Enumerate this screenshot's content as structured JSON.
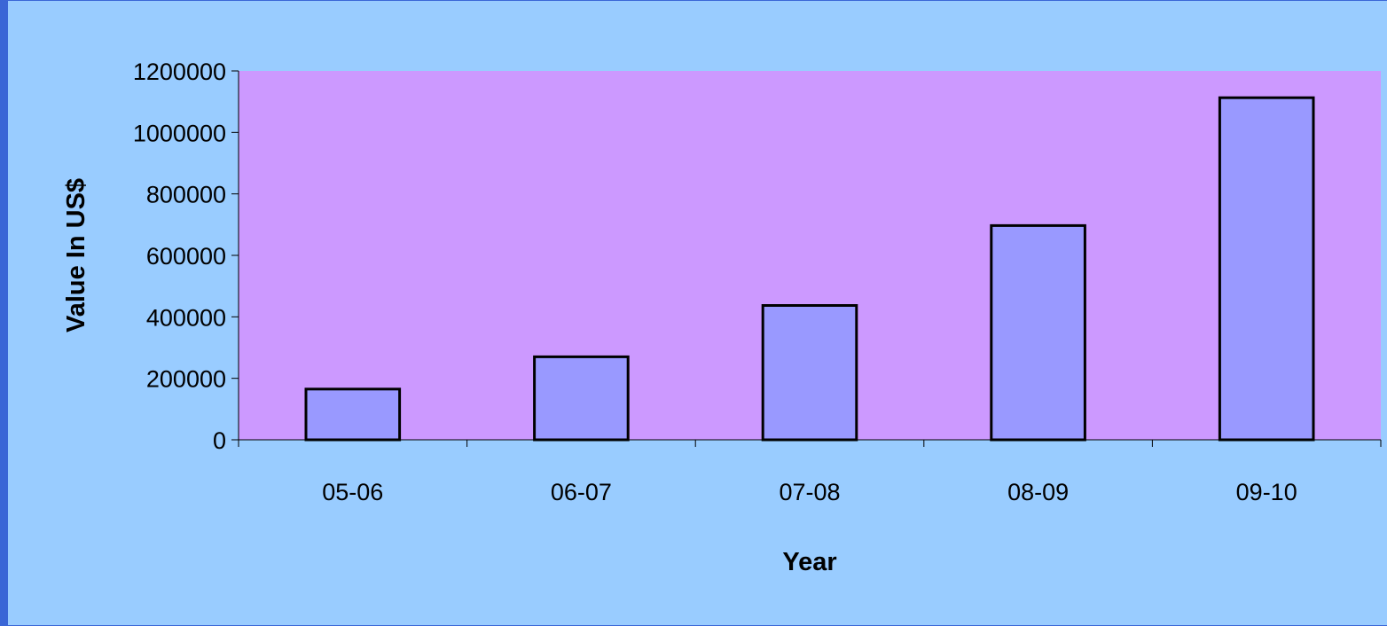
{
  "colors": {
    "background": "#99ccff",
    "frame": "#3a66d6",
    "plot_area": "#cc99ff",
    "bar_fill": "#9999ff",
    "bar_stroke": "#000000"
  },
  "chart_data": {
    "type": "bar",
    "categories": [
      "05-06",
      "06-07",
      "07-08",
      "08-09",
      "09-10"
    ],
    "values": [
      165000,
      270000,
      437000,
      697000,
      1113000
    ],
    "xlabel": "Year",
    "ylabel": "Value In US$",
    "ylim": [
      0,
      1200000
    ],
    "yticks": [
      "0",
      "200000",
      "400000",
      "600000",
      "800000",
      "1000000",
      "1200000"
    ],
    "grid": false,
    "legend": "none"
  }
}
